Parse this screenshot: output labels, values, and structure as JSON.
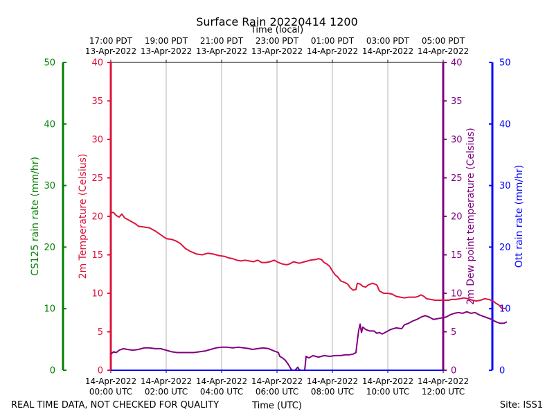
{
  "chart_data": {
    "type": "line",
    "title": "Surface Rain 20220414 1200",
    "top_axis_title": "Time (local)",
    "xlabel": "Time (UTC)",
    "x_unit": "hours since 14-Apr-2022 00:00 UTC",
    "xlim": [
      0,
      12
    ],
    "bottom_ticks": [
      {
        "x": 0,
        "line1": "14-Apr-2022",
        "line2": "00:00 UTC"
      },
      {
        "x": 2,
        "line1": "14-Apr-2022",
        "line2": "02:00 UTC"
      },
      {
        "x": 4,
        "line1": "14-Apr-2022",
        "line2": "04:00 UTC"
      },
      {
        "x": 6,
        "line1": "14-Apr-2022",
        "line2": "06:00 UTC"
      },
      {
        "x": 8,
        "line1": "14-Apr-2022",
        "line2": "08:00 UTC"
      },
      {
        "x": 10,
        "line1": "14-Apr-2022",
        "line2": "10:00 UTC"
      },
      {
        "x": 12,
        "line1": "14-Apr-2022",
        "line2": "12:00 UTC"
      }
    ],
    "top_ticks": [
      {
        "x": 0,
        "line1": "17:00 PDT",
        "line2": "13-Apr-2022"
      },
      {
        "x": 2,
        "line1": "19:00 PDT",
        "line2": "13-Apr-2022"
      },
      {
        "x": 4,
        "line1": "21:00 PDT",
        "line2": "13-Apr-2022"
      },
      {
        "x": 6,
        "line1": "23:00 PDT",
        "line2": "13-Apr-2022"
      },
      {
        "x": 8,
        "line1": "01:00 PDT",
        "line2": "14-Apr-2022"
      },
      {
        "x": 10,
        "line1": "03:00 PDT",
        "line2": "14-Apr-2022"
      },
      {
        "x": 12,
        "line1": "05:00 PDT",
        "line2": "14-Apr-2022"
      }
    ],
    "axes": {
      "cs125": {
        "label": "CS125 rain rate (mm/hr)",
        "color": "#008000",
        "ylim": [
          0,
          50
        ],
        "ticks": [
          0,
          10,
          20,
          30,
          40,
          50
        ]
      },
      "temp": {
        "label": "2m Temperature (Celsius)",
        "color": "#dc143c",
        "ylim": [
          0,
          40
        ],
        "ticks": [
          0,
          5,
          10,
          15,
          20,
          25,
          30,
          35,
          40
        ]
      },
      "dew": {
        "label": "2m Dew point temperature (Celsius)",
        "color": "#800080",
        "ylim": [
          0,
          40
        ],
        "ticks": [
          0,
          5,
          10,
          15,
          20,
          25,
          30,
          35,
          40
        ]
      },
      "ott": {
        "label": "Ott rain rate (mm/hr)",
        "color": "#0000ff",
        "ylim": [
          0,
          50
        ],
        "ticks": [
          0,
          10,
          20,
          30,
          40,
          50
        ]
      }
    },
    "series": [
      {
        "name": "2m Temperature",
        "axis": "temp",
        "color": "#dc143c",
        "points": [
          [
            0,
            20.5
          ],
          [
            0.1,
            20.5
          ],
          [
            0.2,
            20.1
          ],
          [
            0.3,
            19.9
          ],
          [
            0.4,
            20.3
          ],
          [
            0.5,
            19.8
          ],
          [
            0.6,
            19.6
          ],
          [
            0.75,
            19.3
          ],
          [
            0.9,
            19.0
          ],
          [
            1.0,
            18.7
          ],
          [
            1.2,
            18.6
          ],
          [
            1.4,
            18.5
          ],
          [
            1.6,
            18.1
          ],
          [
            1.8,
            17.6
          ],
          [
            2.0,
            17.1
          ],
          [
            2.2,
            17.0
          ],
          [
            2.35,
            16.8
          ],
          [
            2.5,
            16.5
          ],
          [
            2.7,
            15.8
          ],
          [
            2.9,
            15.4
          ],
          [
            3.1,
            15.1
          ],
          [
            3.3,
            15.0
          ],
          [
            3.5,
            15.2
          ],
          [
            3.7,
            15.1
          ],
          [
            3.9,
            14.9
          ],
          [
            4.1,
            14.8
          ],
          [
            4.25,
            14.6
          ],
          [
            4.4,
            14.5
          ],
          [
            4.55,
            14.3
          ],
          [
            4.7,
            14.2
          ],
          [
            4.85,
            14.3
          ],
          [
            5.0,
            14.2
          ],
          [
            5.15,
            14.1
          ],
          [
            5.3,
            14.3
          ],
          [
            5.45,
            14.0
          ],
          [
            5.6,
            14.0
          ],
          [
            5.75,
            14.1
          ],
          [
            5.9,
            14.3
          ],
          [
            6.05,
            14.0
          ],
          [
            6.2,
            13.8
          ],
          [
            6.35,
            13.7
          ],
          [
            6.45,
            13.8
          ],
          [
            6.6,
            14.1
          ],
          [
            6.8,
            13.9
          ],
          [
            7.0,
            14.1
          ],
          [
            7.2,
            14.3
          ],
          [
            7.4,
            14.4
          ],
          [
            7.5,
            14.5
          ],
          [
            7.6,
            14.4
          ],
          [
            7.7,
            14.0
          ],
          [
            7.8,
            13.8
          ],
          [
            7.9,
            13.5
          ],
          [
            8.0,
            12.9
          ],
          [
            8.1,
            12.4
          ],
          [
            8.2,
            12.1
          ],
          [
            8.3,
            11.6
          ],
          [
            8.45,
            11.4
          ],
          [
            8.55,
            11.2
          ],
          [
            8.65,
            10.7
          ],
          [
            8.75,
            10.4
          ],
          [
            8.85,
            10.5
          ],
          [
            8.9,
            11.3
          ],
          [
            9.0,
            11.2
          ],
          [
            9.1,
            10.9
          ],
          [
            9.2,
            10.8
          ],
          [
            9.3,
            11.1
          ],
          [
            9.45,
            11.3
          ],
          [
            9.6,
            11.1
          ],
          [
            9.7,
            10.3
          ],
          [
            9.85,
            10.0
          ],
          [
            10.0,
            10.0
          ],
          [
            10.15,
            9.9
          ],
          [
            10.3,
            9.6
          ],
          [
            10.45,
            9.5
          ],
          [
            10.6,
            9.4
          ],
          [
            10.75,
            9.5
          ],
          [
            10.9,
            9.5
          ],
          [
            11.0,
            9.5
          ],
          [
            11.1,
            9.6
          ],
          [
            11.2,
            9.8
          ],
          [
            11.3,
            9.6
          ],
          [
            11.4,
            9.3
          ],
          [
            11.55,
            9.2
          ],
          [
            11.7,
            9.1
          ],
          [
            11.85,
            9.1
          ],
          [
            12.0,
            9.1
          ],
          [
            12.2,
            9.1
          ],
          [
            12.3,
            9.2
          ],
          [
            12.45,
            9.2
          ],
          [
            12.6,
            9.3
          ],
          [
            12.75,
            9.4
          ],
          [
            12.9,
            9.3
          ],
          [
            13.05,
            9.1
          ],
          [
            13.2,
            9.0
          ],
          [
            13.35,
            9.1
          ],
          [
            13.5,
            9.3
          ],
          [
            13.65,
            9.2
          ],
          [
            13.8,
            9.0
          ],
          [
            13.9,
            8.7
          ],
          [
            14.0,
            8.5
          ],
          [
            14.1,
            8.1
          ],
          [
            14.25,
            8.0
          ]
        ]
      },
      {
        "name": "2m Dew point temperature",
        "axis": "dew",
        "color": "#800080",
        "points": [
          [
            0,
            2.1
          ],
          [
            0.1,
            2.4
          ],
          [
            0.2,
            2.3
          ],
          [
            0.3,
            2.6
          ],
          [
            0.45,
            2.8
          ],
          [
            0.6,
            2.7
          ],
          [
            0.8,
            2.6
          ],
          [
            1.0,
            2.7
          ],
          [
            1.2,
            2.9
          ],
          [
            1.4,
            2.9
          ],
          [
            1.6,
            2.8
          ],
          [
            1.8,
            2.8
          ],
          [
            2.0,
            2.6
          ],
          [
            2.2,
            2.4
          ],
          [
            2.4,
            2.3
          ],
          [
            2.6,
            2.3
          ],
          [
            2.8,
            2.3
          ],
          [
            3.0,
            2.3
          ],
          [
            3.2,
            2.4
          ],
          [
            3.4,
            2.5
          ],
          [
            3.6,
            2.7
          ],
          [
            3.8,
            2.9
          ],
          [
            4.0,
            3.0
          ],
          [
            4.2,
            3.0
          ],
          [
            4.4,
            2.9
          ],
          [
            4.6,
            3.0
          ],
          [
            4.8,
            2.9
          ],
          [
            5.0,
            2.8
          ],
          [
            5.1,
            2.7
          ],
          [
            5.3,
            2.8
          ],
          [
            5.5,
            2.9
          ],
          [
            5.7,
            2.8
          ],
          [
            5.9,
            2.5
          ],
          [
            6.05,
            2.3
          ],
          [
            6.1,
            1.8
          ],
          [
            6.2,
            1.6
          ],
          [
            6.3,
            1.3
          ],
          [
            6.4,
            0.8
          ],
          [
            6.5,
            0.2
          ],
          [
            6.55,
            0.0
          ],
          [
            6.65,
            0.0
          ],
          [
            6.75,
            0.4
          ],
          [
            6.8,
            0.1
          ],
          [
            6.85,
            0.0
          ],
          [
            6.95,
            0.0
          ],
          [
            7.0,
            0.0
          ],
          [
            7.05,
            1.8
          ],
          [
            7.15,
            1.6
          ],
          [
            7.3,
            1.9
          ],
          [
            7.5,
            1.7
          ],
          [
            7.7,
            1.9
          ],
          [
            7.9,
            1.8
          ],
          [
            8.1,
            1.9
          ],
          [
            8.3,
            1.9
          ],
          [
            8.45,
            2.0
          ],
          [
            8.6,
            2.0
          ],
          [
            8.75,
            2.1
          ],
          [
            8.85,
            2.3
          ],
          [
            8.9,
            3.8
          ],
          [
            8.95,
            5.2
          ],
          [
            9.0,
            6.0
          ],
          [
            9.05,
            4.9
          ],
          [
            9.1,
            5.6
          ],
          [
            9.2,
            5.3
          ],
          [
            9.35,
            5.1
          ],
          [
            9.5,
            5.1
          ],
          [
            9.6,
            4.8
          ],
          [
            9.7,
            4.9
          ],
          [
            9.8,
            4.7
          ],
          [
            9.95,
            5.0
          ],
          [
            10.1,
            5.3
          ],
          [
            10.3,
            5.5
          ],
          [
            10.5,
            5.4
          ],
          [
            10.6,
            5.9
          ],
          [
            10.75,
            6.1
          ],
          [
            10.9,
            6.4
          ],
          [
            11.05,
            6.6
          ],
          [
            11.2,
            6.9
          ],
          [
            11.35,
            7.1
          ],
          [
            11.5,
            6.9
          ],
          [
            11.65,
            6.6
          ],
          [
            11.8,
            6.7
          ],
          [
            11.95,
            6.8
          ],
          [
            12.1,
            6.9
          ],
          [
            12.25,
            7.2
          ],
          [
            12.4,
            7.4
          ],
          [
            12.55,
            7.5
          ],
          [
            12.7,
            7.4
          ],
          [
            12.85,
            7.6
          ],
          [
            13.0,
            7.4
          ],
          [
            13.15,
            7.5
          ],
          [
            13.3,
            7.2
          ],
          [
            13.45,
            7.0
          ],
          [
            13.6,
            6.8
          ],
          [
            13.75,
            6.6
          ],
          [
            13.9,
            6.3
          ],
          [
            14.05,
            6.1
          ],
          [
            14.2,
            6.1
          ],
          [
            14.3,
            6.3
          ]
        ]
      },
      {
        "name": "CS125 rain rate",
        "axis": "cs125",
        "color": "#008000",
        "points": [
          [
            0,
            0
          ],
          [
            12,
            0
          ]
        ]
      },
      {
        "name": "Ott rain rate",
        "axis": "ott",
        "color": "#0000ff",
        "points": [
          [
            0,
            0
          ],
          [
            12,
            0
          ]
        ]
      }
    ],
    "grid": "vertical",
    "footer_left": "REAL TIME DATA, NOT CHECKED FOR QUALITY",
    "footer_right": "Site: ISS1"
  }
}
